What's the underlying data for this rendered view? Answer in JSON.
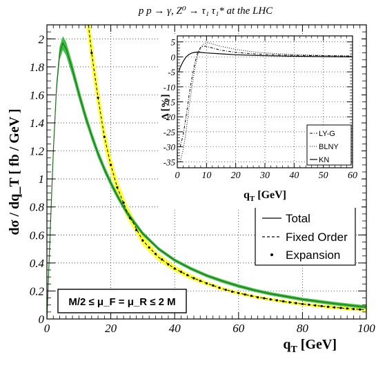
{
  "title": "p p → γ, Z⁰ → τ₁ τ₁* at the LHC",
  "main": {
    "ylabel": "dσ / dq_T [ fb / GeV ]",
    "xlabel_main": "q",
    "xlabel_sub": "T",
    "xlabel_unit": " [GeV]",
    "scale_box": "M/2 ≤ μ_F = μ_R ≤ 2 M",
    "legend": [
      "Total",
      "Fixed Order",
      "Expansion"
    ]
  },
  "inset": {
    "ylabel": "Δ [%]",
    "xlabel_main": "q",
    "xlabel_sub": "T",
    "xlabel_unit": " [GeV]",
    "legend": [
      "LY-G",
      "BLNY",
      "KN"
    ]
  },
  "chart_data": [
    {
      "type": "line",
      "title": "p p → γ, Z⁰ → τ₁ τ₁* at the LHC",
      "xlabel": "q_T [GeV]",
      "ylabel": "dσ / dq_T [ fb / GeV ]",
      "xlim": [
        0,
        100
      ],
      "ylim": [
        0,
        2.1
      ],
      "xticks": [
        0,
        20,
        40,
        60,
        80,
        100
      ],
      "yticks": [
        0,
        0.2,
        0.4,
        0.6,
        0.8,
        1,
        1.2,
        1.4,
        1.6,
        1.8,
        2
      ],
      "grid": true,
      "legend_position": "center-right",
      "series": [
        {
          "name": "Total",
          "style": "solid",
          "band_color": "#3fbf3f",
          "x": [
            0,
            1,
            2,
            3,
            4,
            5,
            6,
            8,
            10,
            12,
            14,
            16,
            18,
            20,
            22,
            25,
            30,
            35,
            40,
            45,
            50,
            55,
            60,
            65,
            70,
            75,
            80,
            85,
            90,
            95,
            100
          ],
          "y": [
            0,
            0.6,
            1.2,
            1.65,
            1.9,
            1.97,
            1.93,
            1.78,
            1.61,
            1.45,
            1.31,
            1.18,
            1.07,
            0.97,
            0.88,
            0.76,
            0.61,
            0.5,
            0.42,
            0.36,
            0.31,
            0.27,
            0.235,
            0.205,
            0.18,
            0.16,
            0.14,
            0.125,
            0.11,
            0.097,
            0.085
          ]
        },
        {
          "name": "Fixed Order",
          "style": "dashed",
          "band_color": "#ffff33",
          "x": [
            12.5,
            14,
            16,
            18,
            20,
            22,
            25,
            30,
            35,
            40,
            45,
            50,
            55,
            60,
            65,
            70,
            75,
            80,
            85,
            90,
            95,
            100
          ],
          "y": [
            2.2,
            1.9,
            1.58,
            1.3,
            1.1,
            0.94,
            0.77,
            0.56,
            0.44,
            0.36,
            0.3,
            0.255,
            0.215,
            0.185,
            0.16,
            0.14,
            0.122,
            0.107,
            0.094,
            0.083,
            0.073,
            0.065
          ]
        },
        {
          "name": "Expansion",
          "style": "points",
          "x": [
            14,
            16,
            18,
            20,
            22,
            24,
            26,
            28,
            30,
            32,
            34,
            36,
            38,
            40,
            42,
            44,
            46,
            48,
            50,
            52,
            54,
            56,
            58,
            60,
            62,
            64,
            66,
            68,
            70,
            72,
            74,
            76,
            78,
            80,
            82,
            84,
            86,
            88,
            90,
            92,
            94,
            96,
            98
          ],
          "y": [
            1.9,
            1.58,
            1.3,
            1.1,
            0.94,
            0.83,
            0.72,
            0.635,
            0.56,
            0.51,
            0.465,
            0.425,
            0.39,
            0.36,
            0.336,
            0.313,
            0.291,
            0.272,
            0.255,
            0.239,
            0.223,
            0.208,
            0.195,
            0.185,
            0.175,
            0.165,
            0.155,
            0.148,
            0.14,
            0.133,
            0.126,
            0.119,
            0.113,
            0.107,
            0.102,
            0.097,
            0.092,
            0.087,
            0.083,
            0.079,
            0.075,
            0.071,
            0.068
          ]
        }
      ]
    },
    {
      "type": "line",
      "xlabel": "q_T [GeV]",
      "ylabel": "Δ [%]",
      "xlim": [
        0,
        60
      ],
      "ylim": [
        -37,
        7
      ],
      "xticks": [
        0,
        10,
        20,
        30,
        40,
        50,
        60
      ],
      "yticks": [
        -35,
        -30,
        -25,
        -20,
        -15,
        -10,
        -5,
        0,
        5
      ],
      "grid": true,
      "legend_position": "bottom-right",
      "series": [
        {
          "name": "LY-G",
          "style": "dashdot",
          "x": [
            1,
            2,
            3,
            4,
            5,
            6,
            7,
            8,
            9,
            10,
            12,
            15,
            20,
            25,
            30,
            40,
            50,
            60
          ],
          "y": [
            -30,
            -26,
            -20,
            -13,
            -7,
            -2,
            1.5,
            3.2,
            3.6,
            3.5,
            3,
            2.2,
            1.5,
            1.1,
            0.8,
            0.5,
            0.4,
            0.3
          ]
        },
        {
          "name": "BLNY",
          "style": "dotted",
          "x": [
            1,
            2,
            3,
            4,
            5,
            6,
            7,
            8,
            9,
            10,
            11,
            12,
            15,
            20,
            25,
            30,
            40,
            50,
            60
          ],
          "y": [
            -35,
            -31,
            -25,
            -17,
            -10,
            -4,
            0.5,
            3,
            4.3,
            4.7,
            4.6,
            4.3,
            3.5,
            2.5,
            1.8,
            1.3,
            0.8,
            0.5,
            0.3
          ]
        },
        {
          "name": "KN",
          "style": "solid",
          "x": [
            0.5,
            1,
            2,
            3,
            4,
            5,
            6,
            7,
            8,
            10,
            15,
            20,
            30,
            40,
            50,
            60
          ],
          "y": [
            -5,
            -3.5,
            -1.5,
            0,
            0.8,
            1.3,
            1.5,
            1.6,
            1.5,
            1.3,
            1,
            0.7,
            0.4,
            0.2,
            0.1,
            0
          ]
        }
      ]
    }
  ]
}
